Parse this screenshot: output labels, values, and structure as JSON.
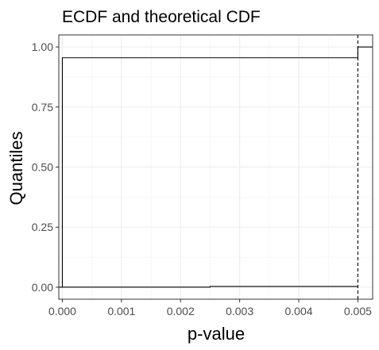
{
  "chart_data": {
    "type": "line",
    "title": "ECDF and theoretical CDF",
    "xlabel": "p-value",
    "ylabel": "Quantiles",
    "xlim": [
      -6e-05,
      0.00525
    ],
    "ylim": [
      -0.05,
      1.05
    ],
    "x_ticks": [
      0.0,
      0.001,
      0.002,
      0.003,
      0.004,
      0.005
    ],
    "x_tick_labels": [
      "0.000",
      "0.001",
      "0.002",
      "0.003",
      "0.004",
      "0.005"
    ],
    "y_ticks": [
      0.0,
      0.25,
      0.5,
      0.75,
      1.0
    ],
    "y_tick_labels": [
      "0.00",
      "0.25",
      "0.50",
      "0.75",
      "1.00"
    ],
    "grid": true,
    "series": [
      {
        "style": "solid",
        "color": "#000000",
        "x": [
          -6e-05,
          0.0,
          0.0,
          0.005,
          0.005,
          0.00525
        ],
        "y": [
          0.0,
          0.0,
          0.955,
          0.955,
          1.0,
          1.0
        ]
      },
      {
        "style": "solid",
        "color": "#000000",
        "x": [
          0.0,
          0.0025,
          0.0025,
          0.005
        ],
        "y": [
          0.0,
          0.0,
          0.003,
          0.003
        ]
      },
      {
        "style": "dashed",
        "color": "#000000",
        "x": [
          0.005,
          0.005
        ],
        "y": [
          -0.05,
          1.05
        ]
      }
    ]
  }
}
